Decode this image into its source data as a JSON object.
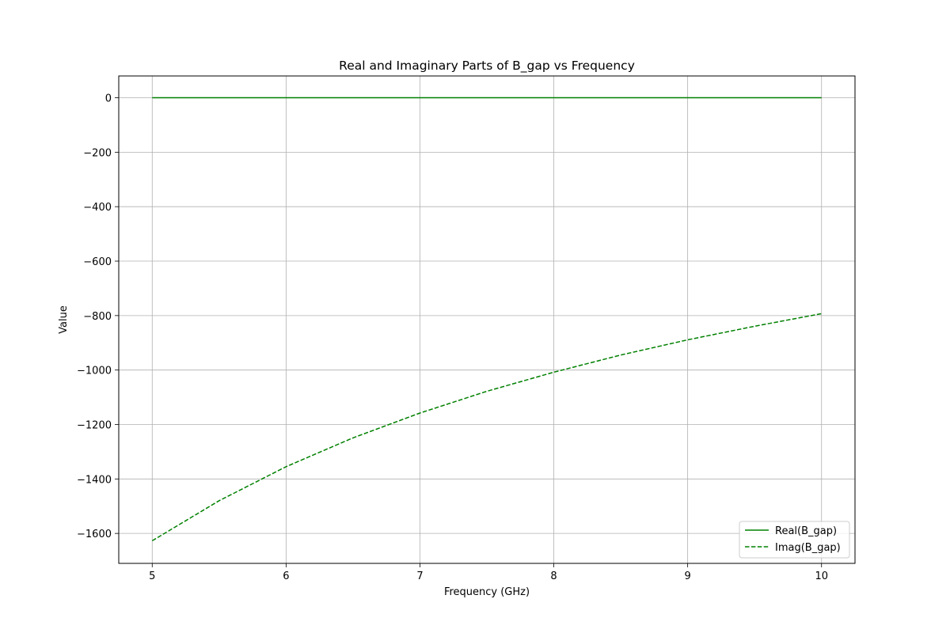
{
  "chart_data": {
    "type": "line",
    "title": "Real and Imaginary Parts of B_gap vs Frequency",
    "xlabel": "Frequency (GHz)",
    "ylabel": "Value",
    "xlim": [
      4.75,
      10.25
    ],
    "ylim": [
      -1710,
      80
    ],
    "xticks": [
      5,
      6,
      7,
      8,
      9,
      10
    ],
    "xtick_labels": [
      "5",
      "6",
      "7",
      "8",
      "9",
      "10"
    ],
    "yticks": [
      0,
      -200,
      -400,
      -600,
      -800,
      -1000,
      -1200,
      -1400,
      -1600
    ],
    "ytick_labels": [
      "0",
      "−200",
      "−400",
      "−600",
      "−800",
      "−1000",
      "−1200",
      "−1400",
      "−1600"
    ],
    "grid": true,
    "legend_position": "lower-right",
    "x": [
      5,
      5.5,
      6,
      6.5,
      7,
      7.5,
      8,
      8.5,
      9,
      9.5,
      10
    ],
    "series": [
      {
        "name": "Real(B_gap)",
        "color": "#008000",
        "style": "solid",
        "values": [
          0,
          0,
          0,
          0,
          0,
          0,
          0,
          0,
          0,
          0,
          0
        ]
      },
      {
        "name": "Imag(B_gap)",
        "color": "#008000",
        "style": "dashed",
        "values": [
          -1627,
          -1480,
          -1355,
          -1249,
          -1158,
          -1078,
          -1008,
          -945,
          -889,
          -839,
          -793
        ]
      }
    ]
  }
}
